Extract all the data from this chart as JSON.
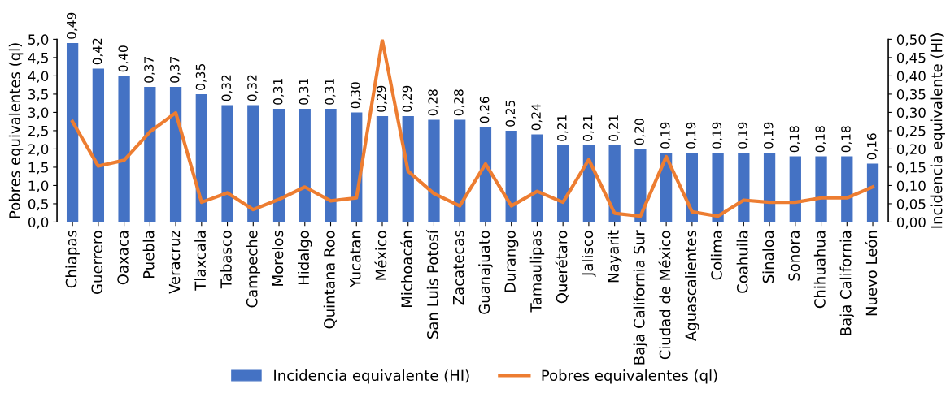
{
  "chart_data": {
    "type": "bar",
    "categories": [
      "Chiapas",
      "Guerrero",
      "Oaxaca",
      "Puebla",
      "Veracruz",
      "Tlaxcala",
      "Tabasco",
      "Campeche",
      "Morelos",
      "Hidalgo",
      "Quintana Roo",
      "Yucatan",
      "México",
      "Michoacán",
      "San Luis Potosí",
      "Zacatecas",
      "Guanajuato",
      "Durango",
      "Tamaulipas",
      "Querétaro",
      "Jalisco",
      "Nayarit",
      "Baja California Sur",
      "Ciudad de México",
      "Aguascalientes",
      "Colima",
      "Coahuila",
      "Sinaloa",
      "Sonora",
      "Chihuahua",
      "Baja California",
      "Nuevo León"
    ],
    "series": [
      {
        "name": "Incidencia equivalente (HI)",
        "axis": "y2",
        "color": "#4472c4",
        "values": [
          0.49,
          0.42,
          0.4,
          0.37,
          0.37,
          0.35,
          0.32,
          0.32,
          0.31,
          0.31,
          0.31,
          0.3,
          0.29,
          0.29,
          0.28,
          0.28,
          0.26,
          0.25,
          0.24,
          0.21,
          0.21,
          0.21,
          0.2,
          0.19,
          0.19,
          0.19,
          0.19,
          0.19,
          0.18,
          0.18,
          0.18,
          0.16
        ],
        "value_labels": [
          "0,49",
          "0,42",
          "0,40",
          "0,37",
          "0,37",
          "0,35",
          "0,32",
          "0,32",
          "0,31",
          "0,31",
          "0,31",
          "0,30",
          "0,29",
          "0,29",
          "0,28",
          "0,28",
          "0,26",
          "0,25",
          "0,24",
          "0,21",
          "0,21",
          "0,21",
          "0,20",
          "0,19",
          "0,19",
          "0,19",
          "0,19",
          "0,19",
          "0,18",
          "0,18",
          "0,18",
          "0,16"
        ]
      },
      {
        "name": "Pobres equivalentes (ql)",
        "type": "line",
        "axis": "y",
        "color": "#ed7d31",
        "values": [
          2.75,
          1.53,
          1.69,
          2.47,
          2.99,
          0.54,
          0.8,
          0.34,
          0.62,
          0.96,
          0.58,
          0.66,
          4.98,
          1.39,
          0.78,
          0.44,
          1.59,
          0.44,
          0.84,
          0.54,
          1.71,
          0.24,
          0.16,
          1.79,
          0.28,
          0.16,
          0.6,
          0.54,
          0.54,
          0.66,
          0.66,
          0.96
        ]
      }
    ],
    "ylabel": "Pobres equivalentes (ql)",
    "y2label": "Incidencia equivalente (HI)",
    "ylim": [
      0,
      5
    ],
    "yticks": [
      {
        "value": 0,
        "label": "0,0"
      },
      {
        "value": 0.5,
        "label": "0,5"
      },
      {
        "value": 1,
        "label": "1,0"
      },
      {
        "value": 1.5,
        "label": "1,5"
      },
      {
        "value": 2,
        "label": "2,0"
      },
      {
        "value": 2.5,
        "label": "2,5"
      },
      {
        "value": 3,
        "label": "3,0"
      },
      {
        "value": 3.5,
        "label": "3,5"
      },
      {
        "value": 4,
        "label": "4,0"
      },
      {
        "value": 4.5,
        "label": "4,5"
      },
      {
        "value": 5,
        "label": "5,0"
      }
    ],
    "y2lim": [
      0,
      0.5
    ],
    "y2ticks": [
      {
        "value": 0,
        "label": "0,00"
      },
      {
        "value": 0.05,
        "label": "0,05"
      },
      {
        "value": 0.1,
        "label": "0,10"
      },
      {
        "value": 0.15,
        "label": "0,15"
      },
      {
        "value": 0.2,
        "label": "0,20"
      },
      {
        "value": 0.25,
        "label": "0,25"
      },
      {
        "value": 0.3,
        "label": "0,30"
      },
      {
        "value": 0.35,
        "label": "0,35"
      },
      {
        "value": 0.4,
        "label": "0,40"
      },
      {
        "value": 0.45,
        "label": "0,45"
      },
      {
        "value": 0.5,
        "label": "0,50"
      }
    ],
    "legend": "bottom",
    "marker": "none",
    "line_style": "solid",
    "grid": false
  }
}
